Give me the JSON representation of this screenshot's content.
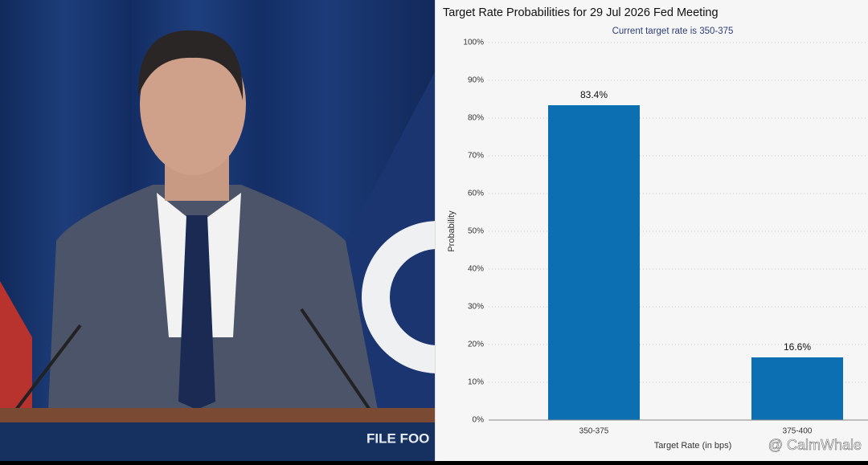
{
  "photo": {
    "podium_text": "FILE FOO"
  },
  "watermark": "@ CalmWhale",
  "chart_data": {
    "type": "bar",
    "title": "Target Rate Probabilities for 29 Jul 2026 Fed Meeting",
    "subtitle": "Current target rate is 350-375",
    "x_label": "Target Rate (in bps)",
    "y_label": "Probability",
    "categories": [
      "350-375",
      "375-400"
    ],
    "values": [
      83.4,
      16.6
    ],
    "value_labels": [
      "83.4%",
      "16.6%"
    ],
    "color": "#0b6fb1",
    "ylim": [
      0,
      100
    ],
    "yticks": [
      {
        "value": 0,
        "label": "0%"
      },
      {
        "value": 10,
        "label": "10%"
      },
      {
        "value": 20,
        "label": "20%"
      },
      {
        "value": 30,
        "label": "30%"
      },
      {
        "value": 40,
        "label": "40%"
      },
      {
        "value": 50,
        "label": "50%"
      },
      {
        "value": 60,
        "label": "60%"
      },
      {
        "value": 70,
        "label": "70%"
      },
      {
        "value": 80,
        "label": "80%"
      },
      {
        "value": 90,
        "label": "90%"
      },
      {
        "value": 100,
        "label": "100%"
      }
    ],
    "grid": true
  }
}
